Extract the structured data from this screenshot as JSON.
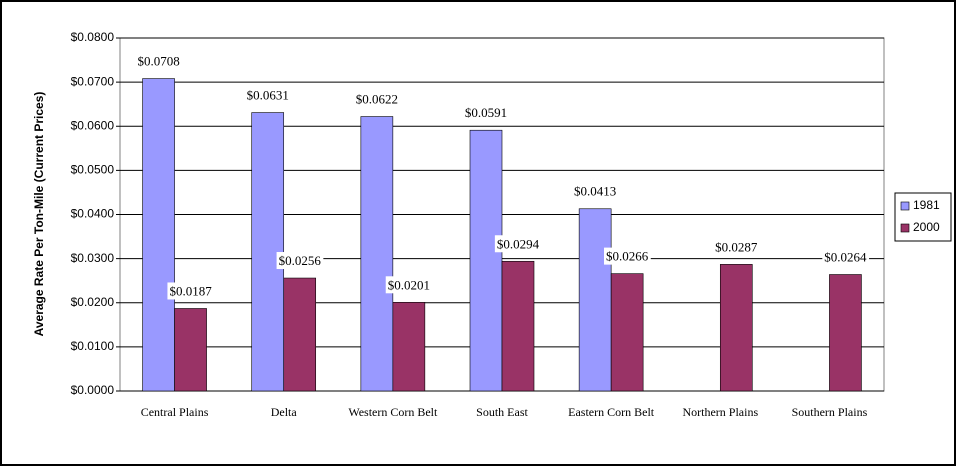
{
  "chart_data": {
    "type": "bar",
    "y_label": "Average Rate Per Ton-Mile (Current Prices)",
    "categories": [
      "Central Plains",
      "Delta",
      "Western Corn Belt",
      "South East",
      "Eastern Corn Belt",
      "Northern Plains",
      "Southern Plains"
    ],
    "series": [
      {
        "name": "1981",
        "color": "#9999ff",
        "values": [
          0.0708,
          0.0631,
          0.0622,
          0.0591,
          0.0413,
          null,
          null
        ],
        "value_labels": [
          "$0.0708",
          "$0.0631",
          "$0.0622",
          "$0.0591",
          "$0.0413",
          null,
          null
        ]
      },
      {
        "name": "2000",
        "color": "#993366",
        "values": [
          0.0187,
          0.0256,
          0.0201,
          0.0294,
          0.0266,
          0.0287,
          0.0264
        ],
        "value_labels": [
          "$0.0187",
          "$0.0256",
          "$0.0201",
          "$0.0294",
          "$0.0266",
          "$0.0287",
          "$0.0264"
        ]
      }
    ],
    "ylim": [
      0,
      0.08
    ],
    "yticks": [
      {
        "value": 0,
        "label": "$0.0000"
      },
      {
        "value": 0.01,
        "label": "$0.0100"
      },
      {
        "value": 0.02,
        "label": "$0.0200"
      },
      {
        "value": 0.03,
        "label": "$0.0300"
      },
      {
        "value": 0.04,
        "label": "$0.0400"
      },
      {
        "value": 0.05,
        "label": "$0.0500"
      },
      {
        "value": 0.06,
        "label": "$0.0600"
      },
      {
        "value": 0.07,
        "label": "$0.0700"
      },
      {
        "value": 0.08,
        "label": "$0.0800"
      }
    ],
    "grid": true,
    "legend": "right"
  }
}
